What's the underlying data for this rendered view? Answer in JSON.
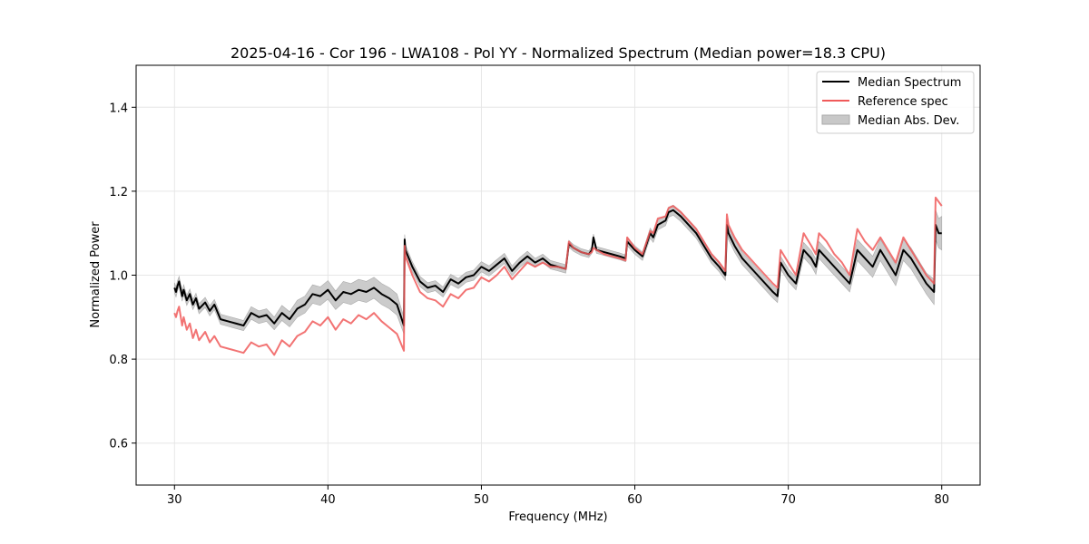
{
  "chart_data": {
    "type": "line",
    "title": "2025-04-16 - Cor 196 - LWA108 - Pol YY - Normalized Spectrum (Median power=18.3 CPU)",
    "xlabel": "Frequency (MHz)",
    "ylabel": "Normalized Power",
    "xlim": [
      27.5,
      82.5
    ],
    "ylim": [
      0.5,
      1.5
    ],
    "xticks": [
      30,
      40,
      50,
      60,
      70,
      80
    ],
    "yticks": [
      0.6,
      0.8,
      1.0,
      1.2,
      1.4
    ],
    "grid": true,
    "legend_position": "top-right",
    "legend": [
      "Median Spectrum",
      "Reference spec",
      "Median Abs. Dev."
    ],
    "colors": {
      "median": "#000000",
      "reference": "#f05a5a",
      "mad": "#c8c8c8",
      "overlap": "#8b1010"
    },
    "series": [
      {
        "name": "Median Spectrum",
        "x": [
          30.0,
          30.1,
          30.2,
          30.3,
          30.5,
          30.6,
          30.8,
          31.0,
          31.2,
          31.4,
          31.6,
          32.0,
          32.3,
          32.6,
          33.0,
          33.5,
          34.0,
          34.5,
          35.0,
          35.5,
          36.0,
          36.5,
          37.0,
          37.5,
          38.0,
          38.5,
          39.0,
          39.5,
          40.0,
          40.5,
          41.0,
          41.5,
          42.0,
          42.5,
          43.0,
          43.5,
          44.0,
          44.5,
          44.95,
          45.0,
          45.05,
          45.5,
          46.0,
          46.5,
          47.0,
          47.5,
          48.0,
          48.5,
          49.0,
          49.5,
          50.0,
          50.5,
          51.0,
          51.5,
          52.0,
          52.5,
          53.0,
          53.5,
          54.0,
          54.5,
          55.0,
          55.5,
          55.7,
          56.0,
          56.5,
          57.0,
          57.2,
          57.3,
          57.5,
          58.0,
          58.5,
          59.0,
          59.4,
          59.5,
          60.0,
          60.5,
          61.0,
          61.2,
          61.5,
          62.0,
          62.2,
          62.5,
          63.0,
          63.5,
          64.0,
          64.5,
          65.0,
          65.5,
          65.9,
          66.0,
          66.1,
          66.5,
          67.0,
          67.5,
          68.0,
          68.5,
          69.0,
          69.3,
          69.5,
          70.0,
          70.5,
          71.0,
          71.5,
          71.8,
          72.0,
          72.5,
          73.0,
          73.5,
          74.0,
          74.5,
          75.0,
          75.5,
          76.0,
          76.5,
          77.0,
          77.5,
          78.0,
          78.5,
          79.0,
          79.5,
          79.6,
          79.7,
          79.8,
          80.0
        ],
        "values": [
          0.97,
          0.96,
          0.975,
          0.985,
          0.95,
          0.965,
          0.94,
          0.955,
          0.93,
          0.945,
          0.92,
          0.935,
          0.915,
          0.93,
          0.895,
          0.89,
          0.885,
          0.88,
          0.91,
          0.9,
          0.905,
          0.885,
          0.91,
          0.895,
          0.92,
          0.93,
          0.955,
          0.95,
          0.965,
          0.94,
          0.96,
          0.955,
          0.965,
          0.96,
          0.97,
          0.955,
          0.945,
          0.93,
          0.88,
          1.085,
          1.06,
          1.02,
          0.985,
          0.97,
          0.975,
          0.96,
          0.99,
          0.98,
          0.995,
          1.0,
          1.02,
          1.01,
          1.025,
          1.04,
          1.01,
          1.03,
          1.045,
          1.03,
          1.04,
          1.025,
          1.02,
          1.015,
          1.075,
          1.065,
          1.055,
          1.05,
          1.06,
          1.09,
          1.06,
          1.055,
          1.05,
          1.045,
          1.04,
          1.08,
          1.06,
          1.045,
          1.1,
          1.09,
          1.12,
          1.13,
          1.15,
          1.155,
          1.14,
          1.12,
          1.1,
          1.07,
          1.04,
          1.02,
          1.0,
          1.12,
          1.1,
          1.07,
          1.04,
          1.02,
          1.0,
          0.98,
          0.96,
          0.95,
          1.03,
          1.0,
          0.98,
          1.06,
          1.04,
          1.02,
          1.06,
          1.04,
          1.02,
          1.0,
          0.98,
          1.06,
          1.04,
          1.02,
          1.06,
          1.03,
          1.0,
          1.06,
          1.04,
          1.01,
          0.98,
          0.96,
          1.12,
          1.11,
          1.1,
          1.1
        ]
      },
      {
        "name": "Reference spec",
        "x": [
          30.0,
          30.1,
          30.2,
          30.3,
          30.5,
          30.6,
          30.8,
          31.0,
          31.2,
          31.4,
          31.6,
          32.0,
          32.3,
          32.6,
          33.0,
          33.5,
          34.0,
          34.5,
          35.0,
          35.5,
          36.0,
          36.5,
          37.0,
          37.5,
          38.0,
          38.5,
          39.0,
          39.5,
          40.0,
          40.5,
          41.0,
          41.5,
          42.0,
          42.5,
          43.0,
          43.5,
          44.0,
          44.5,
          44.95,
          45.0,
          45.05,
          45.5,
          46.0,
          46.5,
          47.0,
          47.5,
          48.0,
          48.5,
          49.0,
          49.5,
          50.0,
          50.5,
          51.0,
          51.5,
          52.0,
          52.5,
          53.0,
          53.5,
          54.0,
          54.5,
          55.0,
          55.5,
          55.7,
          56.0,
          56.5,
          57.0,
          57.2,
          57.3,
          57.5,
          58.0,
          58.5,
          59.0,
          59.4,
          59.5,
          60.0,
          60.5,
          61.0,
          61.2,
          61.5,
          62.0,
          62.2,
          62.5,
          63.0,
          63.5,
          64.0,
          64.5,
          65.0,
          65.5,
          65.9,
          66.0,
          66.1,
          66.5,
          67.0,
          67.5,
          68.0,
          68.5,
          69.0,
          69.3,
          69.5,
          70.0,
          70.5,
          71.0,
          71.5,
          71.8,
          72.0,
          72.5,
          73.0,
          73.5,
          74.0,
          74.5,
          75.0,
          75.5,
          76.0,
          76.5,
          77.0,
          77.5,
          78.0,
          78.5,
          79.0,
          79.5,
          79.6,
          79.7,
          79.8,
          80.0
        ],
        "values": [
          0.91,
          0.9,
          0.915,
          0.925,
          0.88,
          0.9,
          0.87,
          0.885,
          0.85,
          0.87,
          0.845,
          0.865,
          0.84,
          0.855,
          0.83,
          0.825,
          0.82,
          0.815,
          0.84,
          0.83,
          0.835,
          0.81,
          0.845,
          0.83,
          0.855,
          0.865,
          0.89,
          0.88,
          0.9,
          0.87,
          0.895,
          0.885,
          0.905,
          0.895,
          0.91,
          0.89,
          0.875,
          0.86,
          0.82,
          1.07,
          1.045,
          1.0,
          0.96,
          0.945,
          0.94,
          0.925,
          0.955,
          0.945,
          0.965,
          0.97,
          0.995,
          0.985,
          1.0,
          1.02,
          0.99,
          1.01,
          1.03,
          1.02,
          1.03,
          1.02,
          1.02,
          1.015,
          1.08,
          1.065,
          1.055,
          1.05,
          1.055,
          1.065,
          1.06,
          1.05,
          1.045,
          1.04,
          1.035,
          1.09,
          1.065,
          1.05,
          1.105,
          1.1,
          1.135,
          1.14,
          1.16,
          1.165,
          1.15,
          1.13,
          1.11,
          1.08,
          1.05,
          1.03,
          1.01,
          1.145,
          1.12,
          1.09,
          1.06,
          1.04,
          1.02,
          1.0,
          0.98,
          0.97,
          1.06,
          1.03,
          1.0,
          1.1,
          1.07,
          1.05,
          1.1,
          1.08,
          1.05,
          1.03,
          1.0,
          1.11,
          1.08,
          1.06,
          1.09,
          1.06,
          1.03,
          1.09,
          1.06,
          1.03,
          1.0,
          0.98,
          1.185,
          1.18,
          1.175,
          1.165
        ]
      },
      {
        "name": "Median Abs. Dev.",
        "type": "band",
        "center": "Median Spectrum",
        "half_width": [
          0.012,
          0.012,
          0.012,
          0.012,
          0.012,
          0.012,
          0.012,
          0.012,
          0.012,
          0.012,
          0.012,
          0.012,
          0.012,
          0.012,
          0.012,
          0.012,
          0.012,
          0.012,
          0.015,
          0.015,
          0.015,
          0.015,
          0.018,
          0.018,
          0.02,
          0.02,
          0.022,
          0.022,
          0.022,
          0.022,
          0.025,
          0.025,
          0.025,
          0.025,
          0.025,
          0.025,
          0.025,
          0.025,
          0.02,
          0.012,
          0.012,
          0.012,
          0.012,
          0.012,
          0.012,
          0.012,
          0.012,
          0.012,
          0.012,
          0.012,
          0.012,
          0.012,
          0.012,
          0.012,
          0.012,
          0.012,
          0.012,
          0.01,
          0.01,
          0.01,
          0.01,
          0.01,
          0.008,
          0.008,
          0.008,
          0.008,
          0.008,
          0.008,
          0.008,
          0.008,
          0.008,
          0.008,
          0.008,
          0.01,
          0.01,
          0.01,
          0.012,
          0.012,
          0.012,
          0.012,
          0.012,
          0.012,
          0.012,
          0.012,
          0.012,
          0.012,
          0.012,
          0.012,
          0.012,
          0.015,
          0.015,
          0.015,
          0.015,
          0.015,
          0.015,
          0.015,
          0.015,
          0.015,
          0.015,
          0.015,
          0.015,
          0.018,
          0.018,
          0.018,
          0.02,
          0.02,
          0.02,
          0.02,
          0.02,
          0.025,
          0.025,
          0.025,
          0.025,
          0.025,
          0.025,
          0.025,
          0.025,
          0.025,
          0.025,
          0.03,
          0.035,
          0.035,
          0.035,
          0.04
        ]
      }
    ]
  }
}
